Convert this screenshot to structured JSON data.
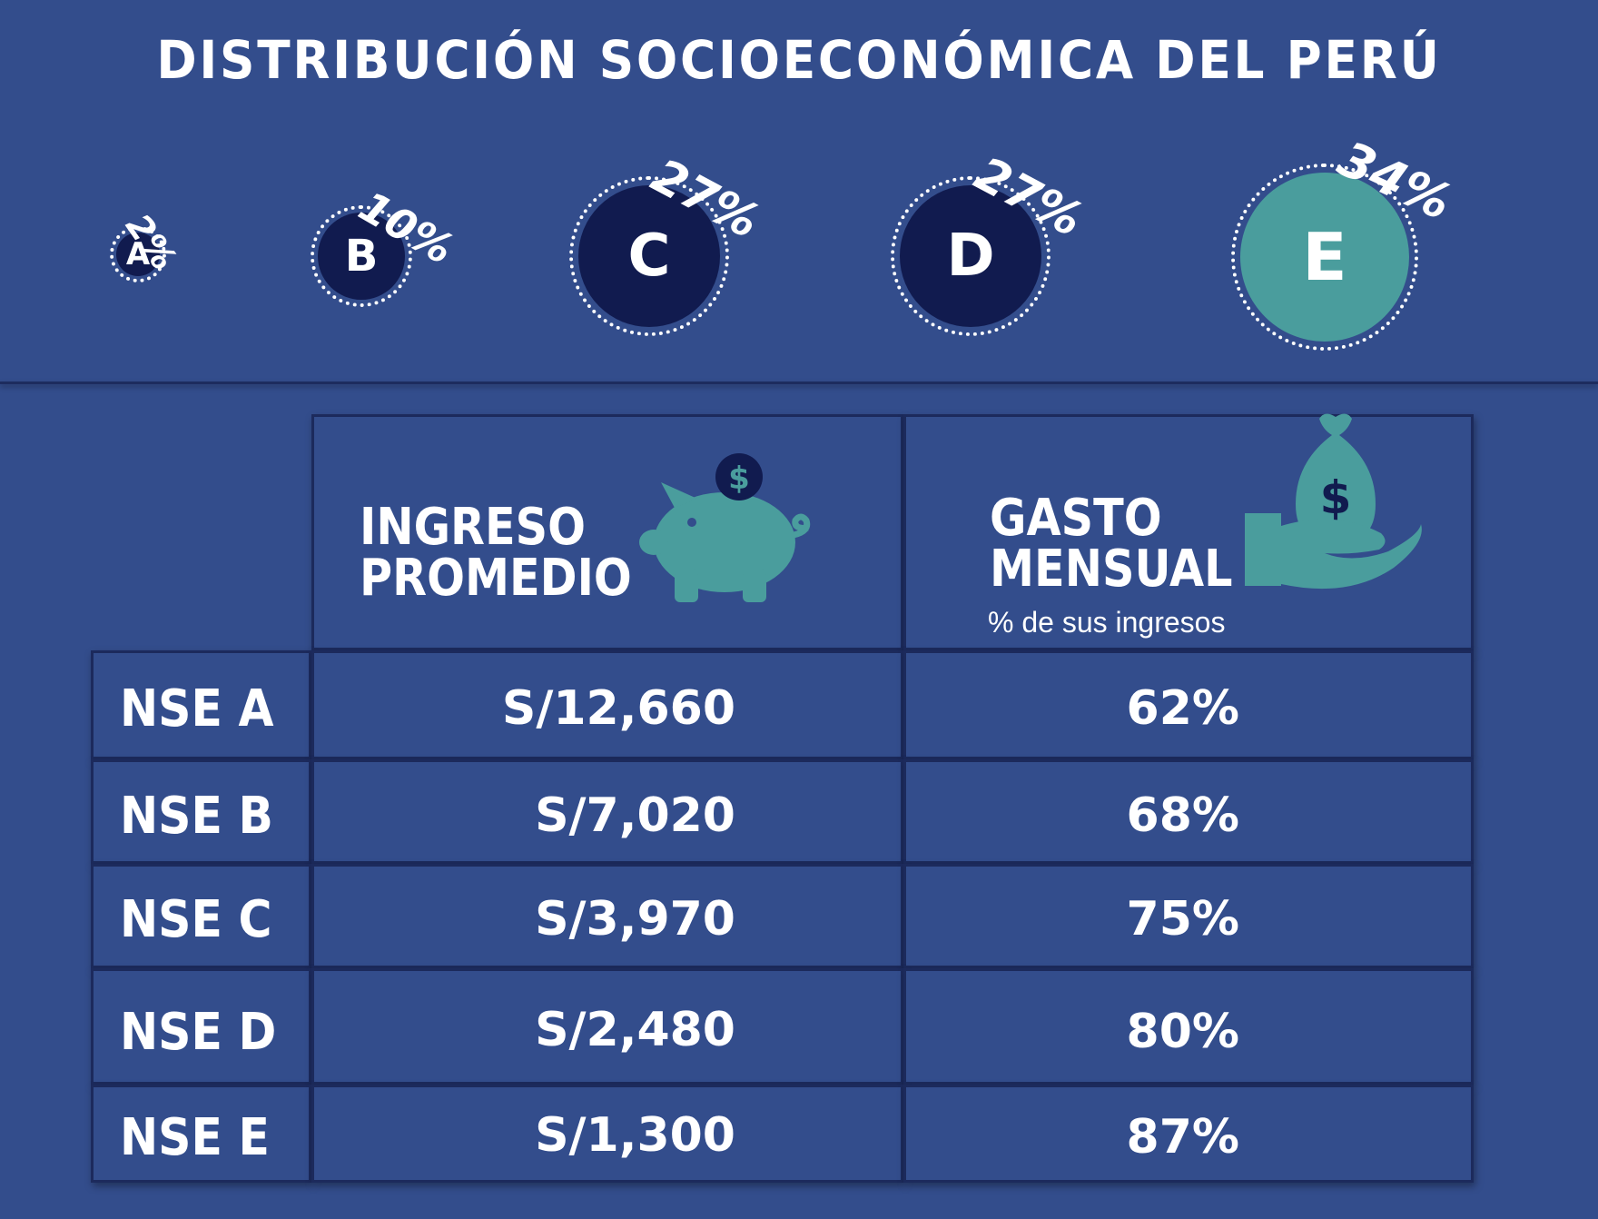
{
  "title": "DISTRIBUCIÓN SOCIOECONÓMICA DEL PERÚ",
  "segments": [
    {
      "letter": "A",
      "percent": "2%",
      "share": 2
    },
    {
      "letter": "B",
      "percent": "10%",
      "share": 10
    },
    {
      "letter": "C",
      "percent": "27%",
      "share": 27
    },
    {
      "letter": "D",
      "percent": "27%",
      "share": 27
    },
    {
      "letter": "E",
      "percent": "34%",
      "share": 34
    }
  ],
  "colors": {
    "background": "#334d8c",
    "bubble": "#111b4f",
    "highlight": "#4a9d9d"
  },
  "table": {
    "header_income": [
      "INGRESO",
      "PROMEDIO"
    ],
    "header_spend": [
      "GASTO",
      "MENSUAL"
    ],
    "header_spend_sub": "% de sus ingresos",
    "icons": {
      "income": "piggy-bank-icon",
      "spend": "money-bag-hand-icon"
    },
    "rows": [
      {
        "label": "NSE A",
        "income": "S/12,660",
        "spend": "62%"
      },
      {
        "label": "NSE B",
        "income": "S/7,020",
        "spend": "68%"
      },
      {
        "label": "NSE C",
        "income": "S/3,970",
        "spend": "75%"
      },
      {
        "label": "NSE D",
        "income": "S/2,480",
        "spend": "80%"
      },
      {
        "label": "NSE E",
        "income": "S/1,300",
        "spend": "87%"
      }
    ]
  }
}
